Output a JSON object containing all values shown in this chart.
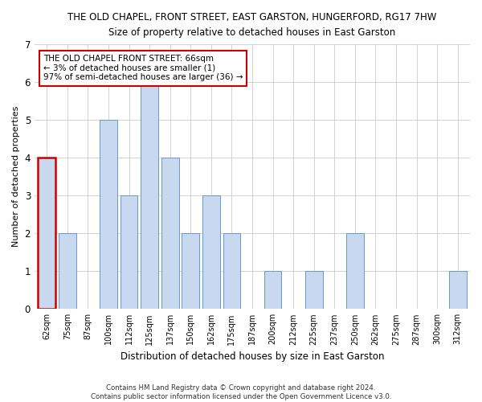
{
  "title": "THE OLD CHAPEL, FRONT STREET, EAST GARSTON, HUNGERFORD, RG17 7HW",
  "subtitle": "Size of property relative to detached houses in East Garston",
  "xlabel": "Distribution of detached houses by size in East Garston",
  "ylabel": "Number of detached properties",
  "categories": [
    "62sqm",
    "75sqm",
    "87sqm",
    "100sqm",
    "112sqm",
    "125sqm",
    "137sqm",
    "150sqm",
    "162sqm",
    "175sqm",
    "187sqm",
    "200sqm",
    "212sqm",
    "225sqm",
    "237sqm",
    "250sqm",
    "262sqm",
    "275sqm",
    "287sqm",
    "300sqm",
    "312sqm"
  ],
  "values": [
    4,
    2,
    0,
    5,
    3,
    6,
    4,
    2,
    3,
    2,
    0,
    1,
    0,
    1,
    0,
    2,
    0,
    0,
    0,
    0,
    1
  ],
  "bar_color": "#c8d8ee",
  "bar_edgecolor": "#6699cc",
  "highlight_index": 0,
  "highlight_edgecolor": "#cc0000",
  "ylim": [
    0,
    7
  ],
  "yticks": [
    0,
    1,
    2,
    3,
    4,
    5,
    6,
    7
  ],
  "annotation_title": "THE OLD CHAPEL FRONT STREET: 66sqm",
  "annotation_line1": "← 3% of detached houses are smaller (1)",
  "annotation_line2": "97% of semi-detached houses are larger (36) →",
  "annotation_box_color": "#ffffff",
  "annotation_box_edgecolor": "#cc0000",
  "footer_line1": "Contains HM Land Registry data © Crown copyright and database right 2024.",
  "footer_line2": "Contains public sector information licensed under the Open Government Licence v3.0.",
  "background_color": "#ffffff",
  "grid_color": "#cccccc"
}
